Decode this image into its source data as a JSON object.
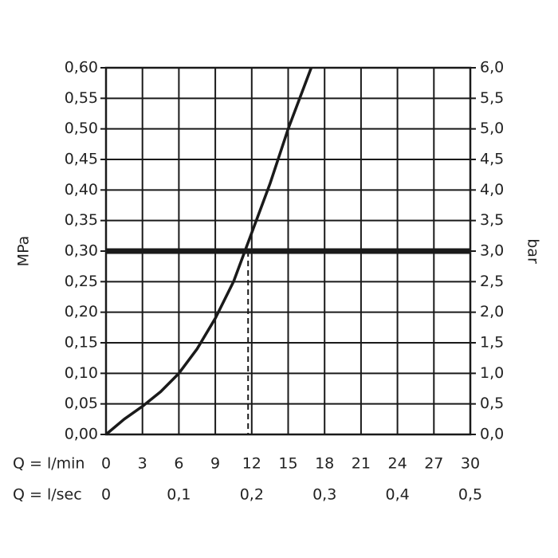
{
  "chart_data": {
    "type": "line",
    "y_label": "MPa",
    "y2_label": "bar",
    "x_label": "Q = l/min",
    "x2_label": "Q = l/sec",
    "x": [
      0,
      1.5,
      3,
      4.5,
      6,
      7.5,
      9,
      10.5,
      12,
      13.5,
      15,
      16.9
    ],
    "series": [
      {
        "color": "#1a1a1a",
        "values": [
          0,
          0.025,
          0.046,
          0.07,
          0.1,
          0.14,
          0.19,
          0.25,
          0.33,
          0.41,
          0.5,
          0.6
        ]
      }
    ],
    "xlim": [
      0,
      30
    ],
    "xticks": [
      0,
      3,
      6,
      9,
      12,
      15,
      18,
      21,
      24,
      27,
      30
    ],
    "x2lim": [
      0,
      0.5
    ],
    "x2ticks": [
      0,
      {
        "value": 0.1,
        "label": "0,1"
      },
      {
        "value": 0.2,
        "label": "0,2"
      },
      {
        "value": 0.3,
        "label": "0,3"
      },
      {
        "value": 0.4,
        "label": "0,4"
      },
      {
        "value": 0.5,
        "label": "0,5"
      }
    ],
    "ylim": [
      0,
      0.6
    ],
    "yticks": [
      {
        "value": 0,
        "label": "0,00"
      },
      {
        "value": 0.05,
        "label": "0,05"
      },
      {
        "value": 0.1,
        "label": "0,10"
      },
      {
        "value": 0.15,
        "label": "0,15"
      },
      {
        "value": 0.2,
        "label": "0,20"
      },
      {
        "value": 0.25,
        "label": "0,25"
      },
      {
        "value": 0.3,
        "label": "0,30"
      },
      {
        "value": 0.35,
        "label": "0,35"
      },
      {
        "value": 0.4,
        "label": "0,40"
      },
      {
        "value": 0.45,
        "label": "0,45"
      },
      {
        "value": 0.5,
        "label": "0,50"
      },
      {
        "value": 0.55,
        "label": "0,55"
      },
      {
        "value": 0.6,
        "label": "0,60"
      }
    ],
    "y2lim": [
      0,
      6
    ],
    "y2ticks": [
      {
        "value": 0,
        "label": "0,0"
      },
      {
        "value": 0.5,
        "label": "0,5"
      },
      {
        "value": 1,
        "label": "1,0"
      },
      {
        "value": 1.5,
        "label": "1,5"
      },
      {
        "value": 2,
        "label": "2,0"
      },
      {
        "value": 2.5,
        "label": "2,5"
      },
      {
        "value": 3,
        "label": "3,0"
      },
      {
        "value": 3.5,
        "label": "3,5"
      },
      {
        "value": 4,
        "label": "4,0"
      },
      {
        "value": 4.5,
        "label": "4,5"
      },
      {
        "value": 5,
        "label": "5,0"
      },
      {
        "value": 5.5,
        "label": "5,5"
      },
      {
        "value": 6,
        "label": "6,0"
      }
    ],
    "reference_y": 0.3,
    "reference_x": 11.7,
    "grid": true
  }
}
